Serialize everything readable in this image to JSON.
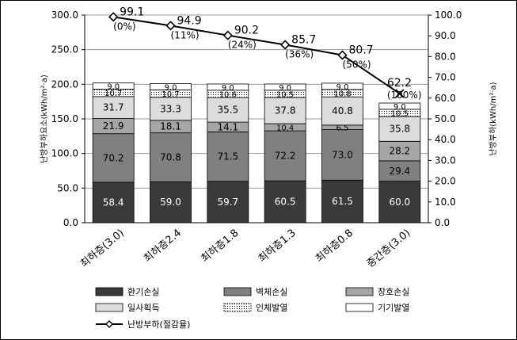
{
  "chart_data": {
    "type": "bar",
    "stacked": true,
    "categories": [
      "최하층(3.0)",
      "최하층2.4",
      "최하층1.8",
      "최하층1.3",
      "최하층0.8",
      "중간층(3.0)"
    ],
    "series": [
      {
        "name": "환기손실",
        "values": [
          58.4,
          59.0,
          59.7,
          60.5,
          61.5,
          60.0
        ],
        "color": "#3a3a3a",
        "label_color": "#ffffff"
      },
      {
        "name": "벽체손실",
        "values": [
          70.2,
          70.8,
          71.5,
          72.2,
          73.0,
          29.4
        ],
        "color": "#808080",
        "label_color": "#000000"
      },
      {
        "name": "창호손실",
        "values": [
          21.9,
          18.1,
          14.1,
          10.4,
          6.5,
          28.2
        ],
        "color": "#a6a6a6",
        "label_color": "#000000"
      },
      {
        "name": "일사획득",
        "values": [
          31.7,
          33.3,
          35.5,
          37.8,
          40.8,
          35.8
        ],
        "color": "#dcdcdc",
        "label_color": "#000000"
      },
      {
        "name": "인체발열",
        "values": [
          10.7,
          10.7,
          10.6,
          10.5,
          10.8,
          10.5
        ],
        "color": "#ffffff",
        "label_color": "#000000",
        "pattern": "dots"
      },
      {
        "name": "기기발열",
        "values": [
          9.0,
          9.0,
          9.0,
          9.0,
          9.0,
          9.0
        ],
        "color": "#ffffff",
        "label_color": "#000000"
      }
    ],
    "line_series": {
      "name": "난방부하(절감율)",
      "axis": "right",
      "values": [
        99.1,
        94.9,
        90.2,
        85.7,
        80.7,
        62.2
      ],
      "savings_labels": [
        "(0%)",
        "(11%)",
        "(24%)",
        "(36%)",
        "(50%)",
        "(100%)"
      ],
      "markers": [
        "diamond",
        "diamond",
        "diamond",
        "diamond",
        "diamond",
        "x"
      ]
    },
    "y_left": {
      "label": "난방부하요소(kWh/m²·a)",
      "range": [
        0,
        300
      ],
      "ticks": [
        "0.0",
        "50.0",
        "100.0",
        "150.0",
        "200.0",
        "250.0",
        "300.0"
      ],
      "tick_values": [
        0,
        50,
        100,
        150,
        200,
        250,
        300
      ]
    },
    "y_right": {
      "label": "난방부하(kWh/m²·a)",
      "range": [
        0,
        100
      ],
      "ticks": [
        "0.0",
        "10.0",
        "20.0",
        "30.0",
        "40.0",
        "50.0",
        "60.0",
        "70.0",
        "80.0",
        "90.0",
        "100.0"
      ],
      "tick_values": [
        0,
        10,
        20,
        30,
        40,
        50,
        60,
        70,
        80,
        90,
        100
      ]
    },
    "grid": true,
    "legend_position": "bottom"
  }
}
